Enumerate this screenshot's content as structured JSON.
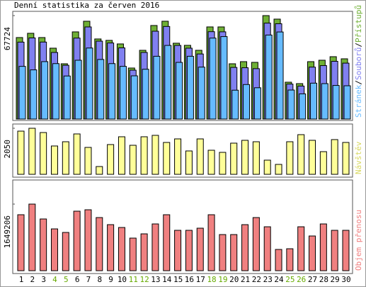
{
  "chart_data": [
    {
      "type": "bar",
      "title": "Denní statistika za červen 2016",
      "categories": [
        "1",
        "2",
        "3",
        "4",
        "5",
        "6",
        "7",
        "8",
        "9",
        "10",
        "11",
        "12",
        "13",
        "14",
        "15",
        "16",
        "17",
        "18",
        "19",
        "20",
        "21",
        "22",
        "23",
        "24",
        "25",
        "26",
        "27",
        "28",
        "29",
        "30"
      ],
      "x_label_colors": [
        "#000",
        "#000",
        "#000",
        "#66aa00",
        "#66aa00",
        "#000",
        "#000",
        "#000",
        "#000",
        "#000",
        "#66aa00",
        "#66aa00",
        "#000",
        "#000",
        "#000",
        "#000",
        "#000",
        "#66aa00",
        "#66aa00",
        "#000",
        "#000",
        "#000",
        "#000",
        "#000",
        "#66aa00",
        "#66aa00",
        "#000",
        "#000",
        "#000",
        "#000"
      ],
      "ylim": [
        0,
        67724
      ],
      "yticks": [
        67724
      ],
      "legend_separator": "/",
      "series": [
        {
          "name": "Přístupů",
          "color": "#6fb035",
          "values": [
            53360,
            56144,
            53360,
            46400,
            36192,
            57072,
            64032,
            52432,
            51504,
            49184,
            33408,
            45008,
            61248,
            64032,
            49648,
            48256,
            45008,
            60320,
            60320,
            36192,
            37584,
            37120,
            67724,
            65424,
            24128,
            23200,
            37584,
            38512,
            40832,
            39440
          ]
        },
        {
          "name": "Souborů",
          "color": "#8080f0",
          "values": [
            50360,
            53100,
            50400,
            43600,
            35200,
            53000,
            60300,
            51000,
            49800,
            46600,
            32000,
            43600,
            57500,
            60600,
            48200,
            46400,
            42600,
            57200,
            57100,
            33800,
            33600,
            33000,
            62800,
            62400,
            22900,
            21600,
            34000,
            35000,
            37800,
            36600
          ]
        },
        {
          "name": "Stránek",
          "color": "#66bbff",
          "values": [
            34500,
            32200,
            37600,
            36300,
            28200,
            38500,
            46500,
            39000,
            36300,
            34500,
            28300,
            32600,
            41100,
            48200,
            37100,
            41100,
            34000,
            53000,
            54000,
            18900,
            22600,
            20500,
            55000,
            57000,
            19000,
            16500,
            23500,
            23200,
            22000,
            21800
          ]
        }
      ]
    },
    {
      "type": "bar",
      "ylim": [
        0,
        2050
      ],
      "yticks": [
        2050
      ],
      "series": [
        {
          "name": "Návštěv",
          "color": "#ffff99",
          "label_color": "#d8d860",
          "values": [
            1923,
            2050,
            1860,
            1262,
            1451,
            1798,
            1198,
            347,
            1325,
            1672,
            1293,
            1672,
            1735,
            1419,
            1577,
            1041,
            1577,
            1072,
            978,
            1388,
            1514,
            1451,
            631,
            442,
            1451,
            1766,
            1514,
            1009,
            1546,
            1419
          ]
        }
      ]
    },
    {
      "type": "bar",
      "ylim": [
        0,
        1649206
      ],
      "yticks": [
        1649206
      ],
      "series": [
        {
          "name": "Objem přenosu",
          "color": "#f08080",
          "label_color": "#f08080",
          "values": [
            1386060,
            1649206,
            1280800,
            1035150,
            947430,
            1473780,
            1508870,
            1315880,
            1140430,
            1070250,
            807070,
            912340,
            1157970,
            1386060,
            1000070,
            1000070,
            1052700,
            1386060,
            894800,
            894800,
            1140430,
            1315880,
            1087790,
            526350,
            543900,
            1087790,
            859710,
            1157970,
            1000070,
            1000070
          ]
        }
      ]
    }
  ]
}
